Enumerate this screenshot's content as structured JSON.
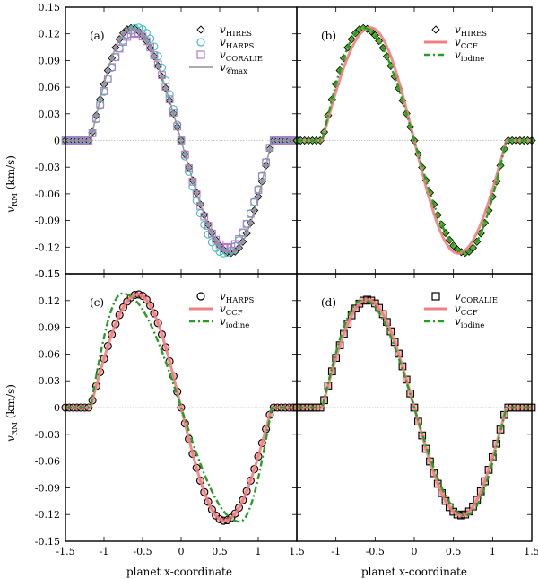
{
  "figure": {
    "xlabel": "planet x-coordinate",
    "ylabel_main": "v",
    "ylabel_sub": "RM",
    "ylabel_units": "(km/s)"
  },
  "axes": {
    "x_ticks": [
      -1.5,
      -1,
      -0.5,
      0,
      0.5,
      1,
      1.5
    ],
    "x_tick_labels_left": [
      "-1.5",
      "-1",
      "-0.5",
      "0",
      "0.5",
      "1",
      "1.5"
    ],
    "x_tick_labels_right": [
      "",
      "-1",
      "-0.5",
      "0",
      "0.5",
      "1",
      "1.5"
    ],
    "x_tick_labels_shared": "1.5",
    "y_ticks": [
      -0.15,
      -0.12,
      -0.09,
      -0.06,
      -0.03,
      0,
      0.03,
      0.06,
      0.09,
      0.12,
      0.15
    ],
    "y_tick_labels": [
      "-0.15",
      "-0.12",
      "-0.09",
      "-0.06",
      "-0.03",
      "0",
      "0.03",
      "0.06",
      "0.09",
      "0.12",
      "0.15"
    ]
  },
  "colors": {
    "hires_fill": "#a9a9a9",
    "hires_fill_b": "#5cb82e",
    "harps": "#3fbfbf",
    "coralie": "#b07cc6",
    "cmax": "#909090",
    "ccf": "#f08080",
    "iodine": "#23a023",
    "zero_line": "#b5b5b5"
  },
  "chart_data": [
    {
      "panel": "(a)",
      "type": "scatter",
      "xlim": [
        -1.5,
        1.5
      ],
      "ylim": [
        -0.15,
        0.15
      ],
      "legend_position": "top-right",
      "series": [
        {
          "name": "v_HIRES",
          "label_main": "v",
          "label_sub": "HIRES",
          "marker": "diamond",
          "shape": "trans",
          "amp": 0.1265,
          "skew": 0.58
        },
        {
          "name": "v_HARPS",
          "label_main": "v",
          "label_sub": "HARPS",
          "marker": "circle",
          "shape": "trans",
          "amp": 0.127,
          "skew": 0.36
        },
        {
          "name": "v_CORALIE",
          "label_main": "v",
          "label_sub": "CORALIE",
          "marker": "square",
          "shape": "trans",
          "amp": 0.121,
          "skew": 0.46
        },
        {
          "name": "v_Cmax",
          "label_main": "v",
          "label_sub": "𝒞max",
          "marker": "line",
          "shape": "trans",
          "amp": 0.1265,
          "skew": 0.58
        }
      ]
    },
    {
      "panel": "(b)",
      "type": "scatter",
      "xlim": [
        -1.5,
        1.5
      ],
      "ylim": [
        -0.15,
        0.15
      ],
      "legend_position": "top-right",
      "series": [
        {
          "name": "v_HIRES",
          "label_main": "v",
          "label_sub": "HIRES",
          "marker": "diamond",
          "shape": "trans",
          "amp": 0.1265,
          "skew": 0.58
        },
        {
          "name": "v_CCF",
          "label_main": "v",
          "label_sub": "CCF",
          "marker": "line",
          "shape": "trans",
          "amp": 0.127,
          "skew": 0.36
        },
        {
          "name": "v_iodine",
          "label_main": "v",
          "label_sub": "iodine",
          "marker": "dashdot",
          "shape": "trans",
          "amp": 0.1265,
          "skew": 0.58
        }
      ]
    },
    {
      "panel": "(c)",
      "type": "scatter",
      "xlim": [
        -1.5,
        1.5
      ],
      "ylim": [
        -0.15,
        0.15
      ],
      "legend_position": "top-right",
      "series": [
        {
          "name": "v_HARPS",
          "label_main": "v",
          "label_sub": "HARPS",
          "marker": "circle",
          "shape": "trans",
          "amp": 0.127,
          "skew": 0.36
        },
        {
          "name": "v_CCF",
          "label_main": "v",
          "label_sub": "CCF",
          "marker": "line",
          "shape": "trans",
          "amp": 0.127,
          "skew": 0.36
        },
        {
          "name": "v_iodine",
          "label_main": "v",
          "label_sub": "iodine",
          "marker": "dashdot",
          "shape": "trans",
          "amp": 0.128,
          "skew": 0.85
        }
      ]
    },
    {
      "panel": "(d)",
      "type": "scatter",
      "xlim": [
        -1.5,
        1.5
      ],
      "ylim": [
        -0.15,
        0.15
      ],
      "legend_position": "top-right",
      "series": [
        {
          "name": "v_CORALIE",
          "label_main": "v",
          "label_sub": "CORALIE",
          "marker": "square",
          "shape": "trans",
          "amp": 0.121,
          "skew": 0.46
        },
        {
          "name": "v_CCF",
          "label_main": "v",
          "label_sub": "CCF",
          "marker": "line",
          "shape": "trans",
          "amp": 0.121,
          "skew": 0.46
        },
        {
          "name": "v_iodine",
          "label_main": "v",
          "label_sub": "iodine",
          "marker": "dashdot",
          "shape": "trans",
          "amp": 0.121,
          "skew": 0.6
        }
      ]
    }
  ]
}
